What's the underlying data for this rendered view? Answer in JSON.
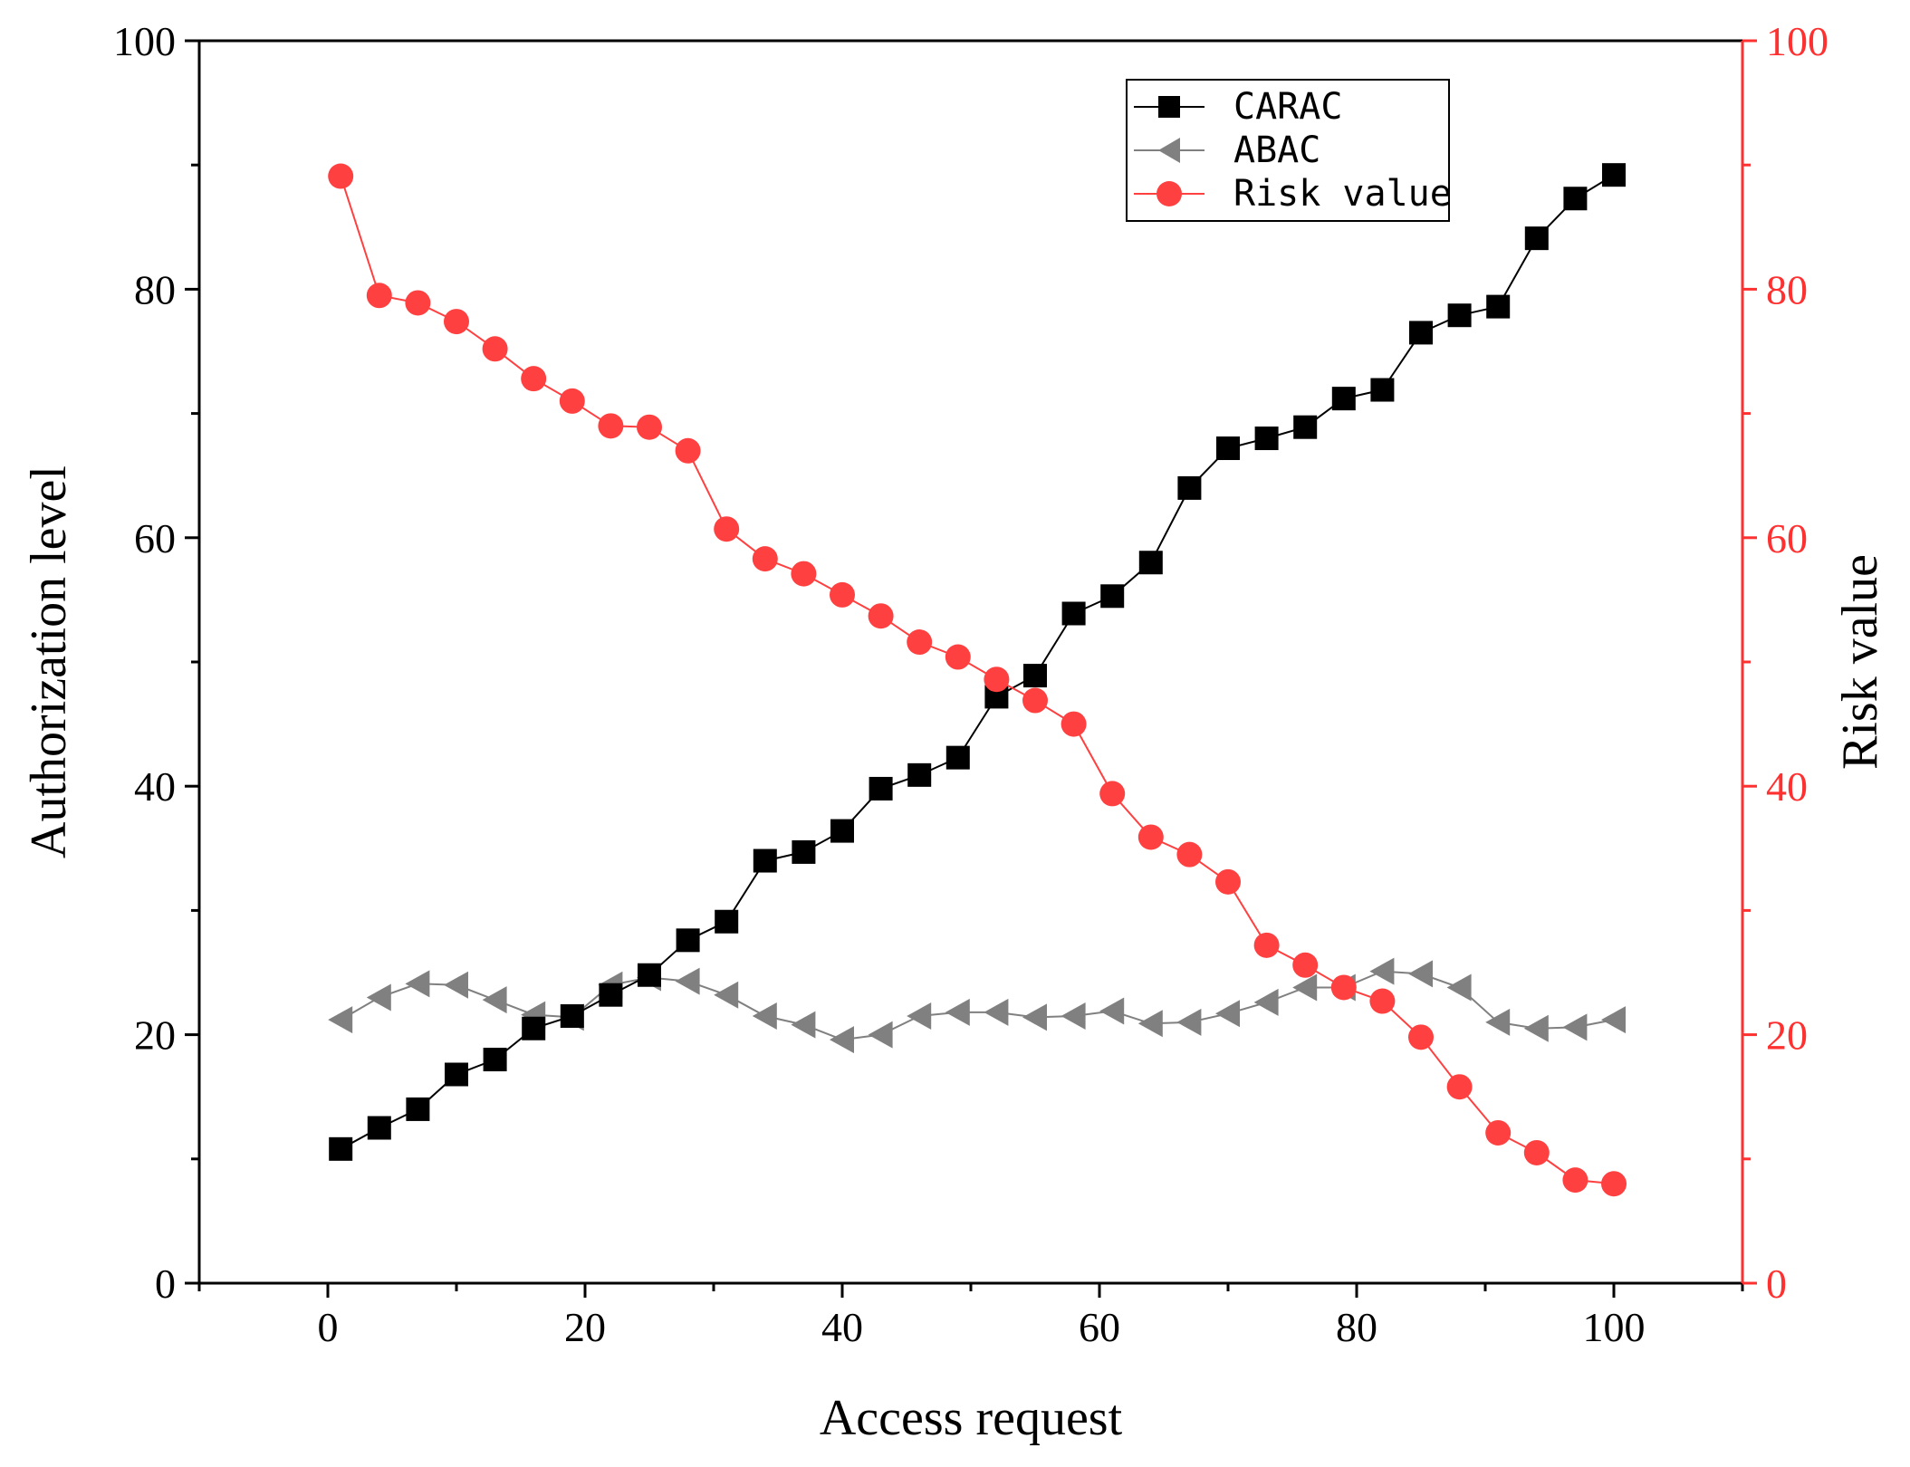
{
  "chart_data": {
    "type": "line",
    "xlabel": "Access request",
    "ylabel_left": "Authorization level",
    "ylabel_right": "Risk value",
    "xlim": [
      -10,
      110
    ],
    "ylim_left": [
      0,
      100
    ],
    "ylim_right": [
      0,
      100
    ],
    "x_ticks": [
      0,
      20,
      40,
      60,
      80,
      100
    ],
    "y_ticks": [
      0,
      20,
      40,
      60,
      80,
      100
    ],
    "legend_position": "top-right",
    "grid": false,
    "x": [
      1,
      4,
      7,
      10,
      13,
      16,
      19,
      22,
      25,
      28,
      31,
      34,
      37,
      40,
      43,
      46,
      49,
      52,
      55,
      58,
      61,
      64,
      67,
      70,
      73,
      76,
      79,
      82,
      85,
      88,
      91,
      94,
      97,
      100
    ],
    "series": [
      {
        "name": "CARAC",
        "axis": "left",
        "marker": "square",
        "color": "#000000",
        "values": [
          10.8,
          12.5,
          14.0,
          16.8,
          18.0,
          20.5,
          21.5,
          23.2,
          24.8,
          27.6,
          29.1,
          34.0,
          34.7,
          36.4,
          39.8,
          40.9,
          42.3,
          47.2,
          48.9,
          53.9,
          55.3,
          58.0,
          64.0,
          67.2,
          68.0,
          68.9,
          71.2,
          71.9,
          76.5,
          77.9,
          78.6,
          84.1,
          87.3,
          89.2
        ]
      },
      {
        "name": "ABAC",
        "axis": "left",
        "marker": "triangle-left",
        "color": "#808080",
        "values": [
          21.2,
          23.0,
          24.1,
          24.0,
          22.8,
          21.6,
          21.4,
          24.0,
          24.6,
          24.3,
          23.2,
          21.5,
          20.8,
          19.6,
          20.0,
          21.5,
          21.8,
          21.8,
          21.4,
          21.5,
          21.9,
          20.9,
          21.0,
          21.7,
          22.6,
          23.8,
          23.8,
          25.1,
          24.9,
          23.8,
          21.0,
          20.5,
          20.6,
          21.2
        ]
      },
      {
        "name": "Risk value",
        "axis": "right",
        "marker": "circle",
        "color": "#FF4040",
        "values": [
          89.1,
          79.5,
          78.9,
          77.4,
          75.2,
          72.8,
          71.0,
          69.0,
          68.9,
          67.0,
          60.7,
          58.3,
          57.1,
          55.4,
          53.7,
          51.6,
          50.4,
          48.6,
          46.9,
          45.0,
          39.4,
          35.9,
          34.5,
          32.3,
          27.2,
          25.6,
          23.8,
          22.7,
          19.8,
          15.8,
          12.1,
          10.5,
          8.3,
          8.0
        ]
      }
    ]
  },
  "colors": {
    "left_axis": "#000000",
    "right_axis": "#FF3030",
    "legend_border": "#000000"
  }
}
